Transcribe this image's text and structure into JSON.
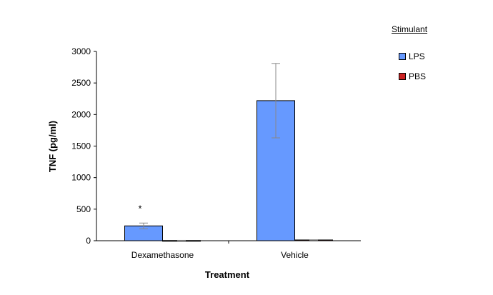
{
  "chart_data": {
    "type": "bar",
    "xlabel": "Treatment",
    "ylabel": "TNF (pg/ml)",
    "ylim": [
      0,
      3000
    ],
    "yticks": [
      "0",
      "500",
      "1000",
      "1500",
      "2000",
      "2500",
      "3000"
    ],
    "categories": [
      "Dexamethasone",
      "Vehicle"
    ],
    "series": [
      {
        "name": "LPS",
        "values": [
          235,
          2220
        ],
        "error": [
          45,
          590
        ],
        "color": "#6699ff"
      },
      {
        "name": "PBS",
        "values": [
          3,
          12
        ],
        "error": [
          3,
          3
        ],
        "color": "#cc2222"
      }
    ],
    "annotations": [
      {
        "text": "*",
        "category": "Dexamethasone",
        "series": "LPS"
      }
    ],
    "legend": {
      "title": "Stimulant",
      "placement": "right"
    },
    "grid": false
  }
}
